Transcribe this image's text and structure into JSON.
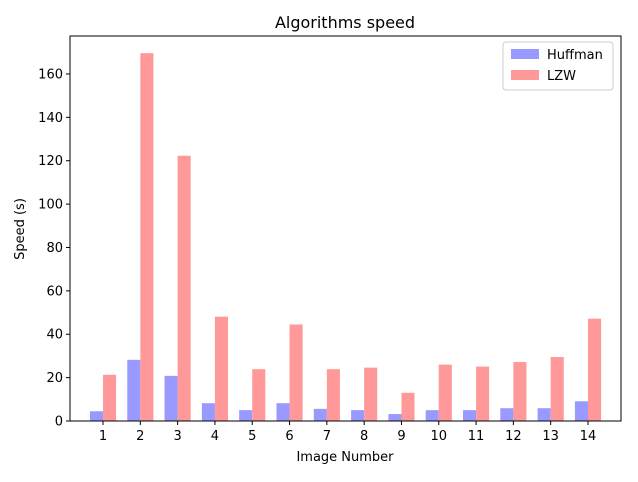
{
  "chart_data": {
    "type": "bar",
    "title": "Algorithms speed",
    "xlabel": "Image Number",
    "ylabel": "Speed (s)",
    "categories": [
      "1",
      "2",
      "3",
      "4",
      "5",
      "6",
      "7",
      "8",
      "9",
      "10",
      "11",
      "12",
      "13",
      "14"
    ],
    "ylim": [
      0,
      177.5
    ],
    "yticks": [
      0,
      20,
      40,
      60,
      80,
      100,
      120,
      140,
      160
    ],
    "grid": false,
    "legend_position": "top-right",
    "series": [
      {
        "name": "Huffman",
        "color": "#9999ff",
        "values": [
          4.5,
          28.2,
          20.8,
          8.2,
          5.0,
          8.2,
          5.6,
          5.0,
          3.2,
          5.0,
          5.0,
          5.9,
          5.9,
          9.1
        ]
      },
      {
        "name": "LZW",
        "color": "#ff9999",
        "values": [
          21.3,
          169.6,
          122.3,
          48.1,
          23.9,
          44.5,
          23.9,
          24.6,
          13.0,
          26.0,
          25.1,
          27.2,
          29.5,
          47.2
        ]
      }
    ]
  }
}
